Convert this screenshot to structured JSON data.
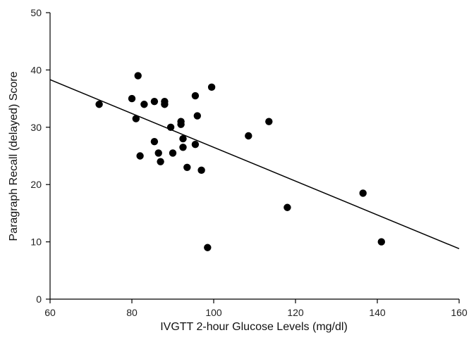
{
  "chart_data": {
    "type": "scatter",
    "title": "",
    "xlabel": "IVGTT 2-hour Glucose Levels (mg/dl)",
    "ylabel": "Paragraph Recall (delayed) Score",
    "xlim": [
      60,
      160
    ],
    "ylim": [
      0,
      50
    ],
    "xticks": [
      60,
      80,
      100,
      120,
      140,
      160
    ],
    "yticks": [
      0,
      10,
      20,
      30,
      40,
      50
    ],
    "grid": false,
    "legend": "none",
    "points": [
      {
        "x": 72,
        "y": 34
      },
      {
        "x": 80,
        "y": 35
      },
      {
        "x": 81,
        "y": 31.5
      },
      {
        "x": 81.5,
        "y": 39
      },
      {
        "x": 82,
        "y": 25
      },
      {
        "x": 83,
        "y": 34
      },
      {
        "x": 85.5,
        "y": 34.5
      },
      {
        "x": 85.5,
        "y": 27.5
      },
      {
        "x": 86.5,
        "y": 25.5
      },
      {
        "x": 87,
        "y": 24
      },
      {
        "x": 88,
        "y": 34.5
      },
      {
        "x": 88,
        "y": 34
      },
      {
        "x": 89.5,
        "y": 30
      },
      {
        "x": 90,
        "y": 25.5
      },
      {
        "x": 92,
        "y": 31
      },
      {
        "x": 92,
        "y": 30.5
      },
      {
        "x": 92.5,
        "y": 28
      },
      {
        "x": 92.5,
        "y": 26.5
      },
      {
        "x": 93.5,
        "y": 23
      },
      {
        "x": 95.5,
        "y": 35.5
      },
      {
        "x": 95.5,
        "y": 27
      },
      {
        "x": 96,
        "y": 32
      },
      {
        "x": 97,
        "y": 22.5
      },
      {
        "x": 98.5,
        "y": 9
      },
      {
        "x": 99.5,
        "y": 37
      },
      {
        "x": 108.5,
        "y": 28.5
      },
      {
        "x": 113.5,
        "y": 31
      },
      {
        "x": 118,
        "y": 16
      },
      {
        "x": 136.5,
        "y": 18.5
      },
      {
        "x": 141,
        "y": 10
      }
    ],
    "trendline": {
      "x": [
        60,
        160
      ],
      "y": [
        38.3,
        8.8
      ]
    },
    "colors": {
      "marker": "#000000",
      "line": "#000000",
      "axis": "#000000"
    }
  }
}
